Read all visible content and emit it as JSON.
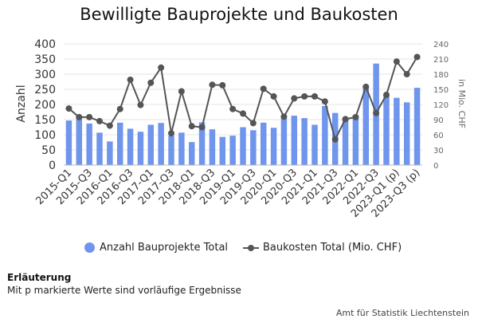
{
  "chart_data": {
    "type": "bar",
    "title": "Bewilligte Bauprojekte und Baukosten",
    "ylabel": "Anzahl",
    "y2label": "in Mio. CHF",
    "ylim": [
      0,
      400
    ],
    "y2lim": [
      0,
      240
    ],
    "yticks": [
      "0",
      "50",
      "100",
      "150",
      "200",
      "250",
      "300",
      "350",
      "400"
    ],
    "y2ticks": [
      "0",
      "30",
      "60",
      "90",
      "120",
      "150",
      "180",
      "210",
      "240"
    ],
    "categories": [
      "2015-Q1",
      "2015-Q2",
      "2015-Q3",
      "2015-Q4",
      "2016-Q1",
      "2016-Q2",
      "2016-Q3",
      "2016-Q4",
      "2017-Q1",
      "2017-Q2",
      "2017-Q3",
      "2017-Q4",
      "2018-Q1",
      "2018-Q2",
      "2018-Q3",
      "2018-Q4",
      "2019-Q1",
      "2019-Q2",
      "2019-Q3",
      "2019-Q4",
      "2020-Q1",
      "2020-Q2",
      "2020-Q3",
      "2020-Q4",
      "2021-Q1",
      "2021-Q2",
      "2021-Q3",
      "2021-Q4",
      "2022-Q1",
      "2022-Q2",
      "2022-Q3",
      "2022-Q4",
      "2023-Q1 (p)",
      "2023-Q2 (p)",
      "2023-Q3 (p)"
    ],
    "shown_tick_labels": [
      "2015-Q1",
      "2015-Q3",
      "2016-Q1",
      "2016-Q3",
      "2017-Q1",
      "2017-Q3",
      "2018-Q1",
      "2018-Q3",
      "2019-Q1",
      "2019-Q3",
      "2020-Q1",
      "2020-Q3",
      "2021-Q1",
      "2021-Q3",
      "2022-Q1",
      "2022-Q3",
      "2023-Q1 (p)",
      "2023-Q3 (p)"
    ],
    "series": [
      {
        "name": "Anzahl Bauprojekte Total",
        "type": "bar",
        "axis": "left",
        "color": "#6f95ec",
        "values": [
          147,
          158,
          137,
          107,
          78,
          140,
          120,
          110,
          133,
          139,
          97,
          107,
          76,
          141,
          118,
          93,
          97,
          125,
          115,
          140,
          123,
          155,
          163,
          155,
          133,
          195,
          172,
          150,
          165,
          257,
          335,
          232,
          222,
          207,
          255
        ]
      },
      {
        "name": "Baukosten Total (Mio. CHF)",
        "type": "line",
        "axis": "right",
        "color": "#555555",
        "values": [
          112,
          95,
          95,
          87,
          78,
          111,
          169,
          119,
          163,
          193,
          63,
          146,
          77,
          75,
          159,
          158,
          111,
          102,
          83,
          151,
          136,
          96,
          132,
          136,
          136,
          126,
          51,
          91,
          95,
          155,
          103,
          139,
          205,
          180,
          214
        ]
      }
    ],
    "grid": true,
    "legend_position": "bottom"
  },
  "note": {
    "title": "Erläuterung",
    "text": "Mit p markierte Werte sind vorläufige Ergebnisse"
  },
  "source": "Amt für Statistik Liechtenstein"
}
